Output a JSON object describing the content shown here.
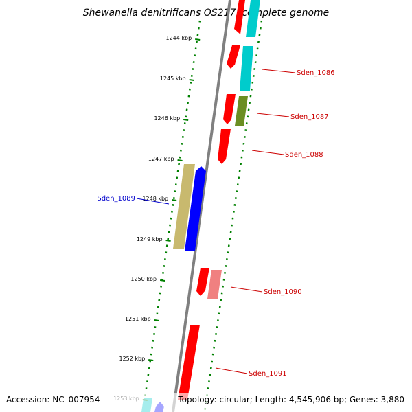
{
  "title": "Shewanella denitrificans OS217, complete genome",
  "footer": {
    "accession": "Accession: NC_007954",
    "topology": "Topology: circular; Length: 4,545,906 bp; Genes: 3,880"
  },
  "ticks": [
    "1244 kbp",
    "1245 kbp",
    "1246 kbp",
    "1247 kbp",
    "1248 kbp",
    "1249 kbp",
    "1250 kbp",
    "1251 kbp",
    "1252 kbp",
    "1253 kbp"
  ],
  "gene_labels": [
    {
      "text": "Sden_1086",
      "color": "#cc0000"
    },
    {
      "text": "Sden_1087",
      "color": "#cc0000"
    },
    {
      "text": "Sden_1088",
      "color": "#cc0000"
    },
    {
      "text": "Sden_1089",
      "color": "#0000cc"
    },
    {
      "text": "Sden_1090",
      "color": "#cc0000"
    },
    {
      "text": "Sden_1091",
      "color": "#cc0000"
    }
  ],
  "colors": {
    "backbone": "#808080",
    "tick_dots": "#008000",
    "red_gene": "#ff0000",
    "cyan_gene": "#00cccc",
    "olive_gene": "#6b8e23",
    "khaki_gene": "#c8b96e",
    "blue_gene": "#0000ff",
    "pink_gene": "#f08080"
  }
}
